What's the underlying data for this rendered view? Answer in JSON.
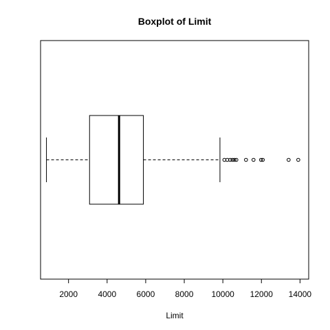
{
  "chart_data": {
    "type": "boxplot",
    "title": "Boxplot of Limit",
    "xlabel": "Limit",
    "ylabel": "",
    "orientation": "horizontal",
    "xlim": [
      550,
      14450
    ],
    "ticks": [
      2000,
      4000,
      6000,
      8000,
      10000,
      12000,
      14000
    ],
    "tick_labels": [
      "2000",
      "4000",
      "6000",
      "8000",
      "10000",
      "12000",
      "14000"
    ],
    "box": {
      "whisker_low": 855,
      "q1": 3090,
      "median": 4620,
      "q3": 5880,
      "whisker_high": 9850
    },
    "outliers": [
      10080,
      10230,
      10380,
      10500,
      10600,
      10700,
      11200,
      11590,
      11980,
      12070,
      13410,
      13910
    ],
    "colors": {
      "stroke": "#000000",
      "background": "#ffffff"
    }
  }
}
